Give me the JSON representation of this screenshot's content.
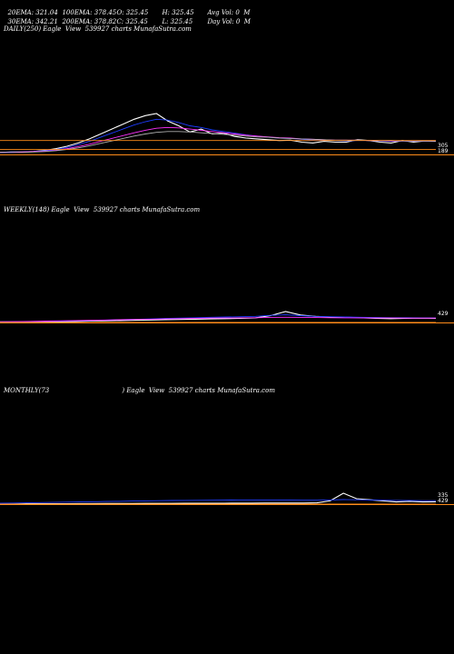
{
  "header": {
    "row1": [
      {
        "label": "20EMA: 321.04"
      },
      {
        "label": "100EMA: 378.45"
      },
      {
        "label": "O: 325.45"
      },
      {
        "label": "H: 325.45"
      },
      {
        "label": "Avg Vol: 0  M"
      }
    ],
    "row2": [
      {
        "label": "30EMA: 342.21"
      },
      {
        "label": "200EMA: 378.82"
      },
      {
        "label": "C: 325.45"
      },
      {
        "label": "L: 325.45"
      },
      {
        "label": "Day Vol: 0  M"
      }
    ]
  },
  "colors": {
    "background": "#000000",
    "price": "#ffffff",
    "ema_blue": "#1e3cff",
    "ema_magenta": "#ff30ff",
    "ema_orange": "#ff8c1a",
    "ema_gray": "#b0b0b0"
  },
  "chart_data": [
    {
      "type": "line",
      "panel": "daily",
      "title": "DAILY(250) Eagle  View  539927 charts MunafaSutra.com",
      "end_labels": [
        "305",
        "189"
      ],
      "series": [
        {
          "color_key": "price",
          "values": [
            0.05,
            0.06,
            0.06,
            0.07,
            0.1,
            0.14,
            0.2,
            0.28,
            0.38,
            0.5,
            0.62,
            0.74,
            0.86,
            0.95,
            1.0,
            0.82,
            0.7,
            0.55,
            0.62,
            0.5,
            0.52,
            0.44,
            0.4,
            0.38,
            0.36,
            0.34,
            0.35,
            0.3,
            0.28,
            0.32,
            0.3,
            0.3,
            0.36,
            0.34,
            0.3,
            0.28,
            0.34,
            0.3,
            0.33,
            0.32
          ]
        },
        {
          "color_key": "ema_blue",
          "values": [
            0.05,
            0.06,
            0.06,
            0.07,
            0.09,
            0.12,
            0.17,
            0.24,
            0.32,
            0.42,
            0.52,
            0.62,
            0.72,
            0.8,
            0.86,
            0.84,
            0.78,
            0.7,
            0.66,
            0.6,
            0.56,
            0.52,
            0.48,
            0.45,
            0.42,
            0.4,
            0.39,
            0.37,
            0.35,
            0.35,
            0.34,
            0.33,
            0.34,
            0.34,
            0.33,
            0.32,
            0.33,
            0.32,
            0.33,
            0.33
          ]
        },
        {
          "color_key": "ema_magenta",
          "values": [
            0.05,
            0.05,
            0.06,
            0.07,
            0.08,
            0.1,
            0.14,
            0.19,
            0.25,
            0.32,
            0.39,
            0.46,
            0.53,
            0.59,
            0.64,
            0.66,
            0.65,
            0.62,
            0.59,
            0.56,
            0.53,
            0.5,
            0.47,
            0.45,
            0.43,
            0.41,
            0.4,
            0.38,
            0.37,
            0.36,
            0.35,
            0.35,
            0.35,
            0.34,
            0.34,
            0.33,
            0.33,
            0.33,
            0.33,
            0.33
          ]
        },
        {
          "color_key": "ema_gray",
          "values": [
            0.05,
            0.05,
            0.05,
            0.06,
            0.07,
            0.09,
            0.12,
            0.16,
            0.21,
            0.27,
            0.33,
            0.39,
            0.45,
            0.5,
            0.54,
            0.56,
            0.56,
            0.55,
            0.53,
            0.51,
            0.49,
            0.47,
            0.45,
            0.43,
            0.42,
            0.4,
            0.39,
            0.38,
            0.37,
            0.36,
            0.35,
            0.35,
            0.35,
            0.34,
            0.34,
            0.34,
            0.33,
            0.33,
            0.33,
            0.33
          ]
        },
        {
          "color_key": "ema_orange",
          "values": [
            0.34,
            0.34,
            0.34,
            0.34,
            0.34,
            0.34,
            0.34,
            0.34,
            0.34,
            0.34,
            0.34,
            0.34,
            0.34,
            0.34,
            0.34,
            0.34,
            0.34,
            0.34,
            0.34,
            0.34,
            0.34,
            0.34,
            0.34,
            0.34,
            0.34,
            0.34,
            0.34,
            0.34,
            0.34,
            0.34,
            0.34,
            0.34,
            0.34,
            0.34,
            0.34,
            0.34,
            0.34,
            0.34,
            0.34,
            0.34
          ]
        },
        {
          "color_key": "ema_orange",
          "values": [
            0.12,
            0.12,
            0.12,
            0.12,
            0.12,
            0.12,
            0.12,
            0.12,
            0.12,
            0.12,
            0.12,
            0.12,
            0.12,
            0.12,
            0.12,
            0.12,
            0.12,
            0.12,
            0.12,
            0.12,
            0.12,
            0.12,
            0.12,
            0.12,
            0.12,
            0.12,
            0.12,
            0.12,
            0.12,
            0.12,
            0.12,
            0.12,
            0.12,
            0.12,
            0.12,
            0.12,
            0.12,
            0.12,
            0.12,
            0.12
          ]
        }
      ]
    },
    {
      "type": "line",
      "panel": "weekly",
      "title": "WEEKLY(148) Eagle  View  539927 charts MunafaSutra.com",
      "end_labels": [
        "429"
      ],
      "series": [
        {
          "color_key": "price",
          "values": [
            0.05,
            0.05,
            0.06,
            0.06,
            0.07,
            0.08,
            0.1,
            0.12,
            0.14,
            0.16,
            0.18,
            0.2,
            0.22,
            0.24,
            0.26,
            0.28,
            0.3,
            0.34,
            0.5,
            0.8,
            0.55,
            0.45,
            0.4,
            0.38,
            0.35,
            0.3,
            0.28,
            0.3,
            0.32,
            0.3
          ]
        },
        {
          "color_key": "ema_blue",
          "values": [
            0.05,
            0.06,
            0.07,
            0.08,
            0.1,
            0.12,
            0.14,
            0.17,
            0.2,
            0.23,
            0.26,
            0.29,
            0.32,
            0.35,
            0.38,
            0.4,
            0.42,
            0.45,
            0.52,
            0.56,
            0.5,
            0.45,
            0.42,
            0.4,
            0.38,
            0.36,
            0.35,
            0.35,
            0.34,
            0.33
          ]
        },
        {
          "color_key": "ema_magenta",
          "values": [
            0.05,
            0.06,
            0.08,
            0.1,
            0.12,
            0.14,
            0.16,
            0.18,
            0.2,
            0.22,
            0.24,
            0.26,
            0.28,
            0.3,
            0.32,
            0.33,
            0.34,
            0.35,
            0.37,
            0.38,
            0.37,
            0.36,
            0.35,
            0.34,
            0.34,
            0.33,
            0.33,
            0.32,
            0.32,
            0.32
          ]
        },
        {
          "color_key": "ema_orange",
          "values": [
            0.0,
            0.0,
            0.0,
            0.0,
            0.0,
            0.0,
            0.0,
            0.0,
            0.0,
            0.0,
            0.0,
            0.0,
            0.0,
            0.0,
            0.0,
            0.0,
            0.0,
            0.0,
            0.0,
            0.0,
            0.0,
            0.0,
            0.0,
            0.0,
            0.0,
            0.0,
            0.0,
            0.0,
            0.0,
            0.0
          ]
        }
      ]
    },
    {
      "type": "line",
      "panel": "monthly",
      "title": "MONTHLY(73                                    ) Eagle  View  539927 charts MunafaSutra.com",
      "end_labels": [
        "335",
        "429"
      ],
      "series": [
        {
          "color_key": "price",
          "values": [
            0.02,
            0.02,
            0.03,
            0.03,
            0.04,
            0.04,
            0.05,
            0.05,
            0.06,
            0.06,
            0.06,
            0.07,
            0.07,
            0.07,
            0.08,
            0.08,
            0.08,
            0.08,
            0.09,
            0.09,
            0.1,
            0.1,
            0.1,
            0.1,
            0.12,
            0.3,
            1.0,
            0.5,
            0.4,
            0.3,
            0.2,
            0.25,
            0.2,
            0.22
          ]
        },
        {
          "color_key": "ema_blue",
          "values": [
            0.08,
            0.1,
            0.12,
            0.14,
            0.16,
            0.18,
            0.2,
            0.22,
            0.24,
            0.26,
            0.28,
            0.3,
            0.32,
            0.33,
            0.34,
            0.35,
            0.36,
            0.37,
            0.38,
            0.38,
            0.38,
            0.38,
            0.37,
            0.36,
            0.36,
            0.38,
            0.42,
            0.4,
            0.38,
            0.36,
            0.34,
            0.33,
            0.32,
            0.32
          ]
        },
        {
          "color_key": "ema_orange",
          "values": [
            0.0,
            0.0,
            0.0,
            0.0,
            0.0,
            0.0,
            0.0,
            0.0,
            0.0,
            0.0,
            0.0,
            0.0,
            0.0,
            0.0,
            0.0,
            0.0,
            0.0,
            0.0,
            0.0,
            0.0,
            0.0,
            0.0,
            0.0,
            0.0,
            0.0,
            0.0,
            0.0,
            0.0,
            0.0,
            0.0,
            0.0,
            0.0,
            0.0,
            0.0
          ]
        }
      ]
    }
  ]
}
